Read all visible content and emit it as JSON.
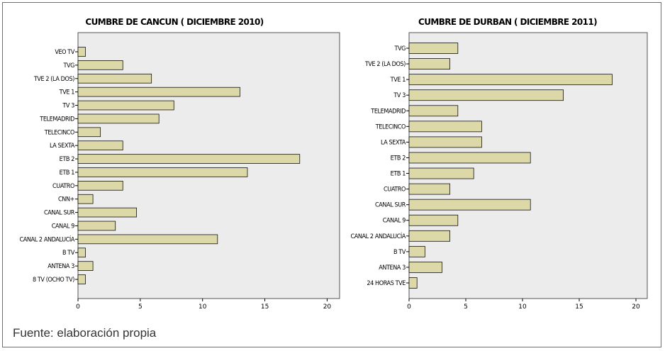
{
  "chart_data": [
    {
      "type": "bar",
      "orientation": "horizontal",
      "title": "CUMBRE DE CANCUN ( DICIEMBRE 2010)",
      "categories": [
        "VEO TV",
        "TVG",
        "TVE 2 (LA DOS)",
        "TVE 1",
        "TV 3",
        "TELEMADRID",
        "TELECINCO",
        "LA SEXTA",
        "ETB 2",
        "ETB 1",
        "CUATRO",
        "CNN+",
        "CANAL SUR",
        "CANAL 9",
        "CANAL 2 ANDALUCÍA",
        "B TV",
        "ANTENA 3",
        "8 TV (OCHO TV)"
      ],
      "values": [
        0.6,
        3.6,
        5.9,
        13.0,
        7.7,
        6.5,
        1.8,
        3.6,
        17.8,
        13.6,
        3.6,
        1.2,
        4.7,
        3.0,
        11.2,
        0.6,
        1.2,
        0.6
      ],
      "xlim": [
        0,
        21
      ],
      "xticks": [
        0,
        5,
        10,
        15,
        20
      ],
      "grid": false,
      "bar_color": "#ddd8a7",
      "plot_background": "#ececec"
    },
    {
      "type": "bar",
      "orientation": "horizontal",
      "title": "CUMBRE DE DURBAN ( DICIEMBRE 2011)",
      "categories": [
        "TVG",
        "TVE 2 (LA DOS)",
        "TVE 1",
        "TV 3",
        "TELEMADRID",
        "TELECINCO",
        "LA SEXTA",
        "ETB 2",
        "ETB 1",
        "CUATRO",
        "CANAL SUR",
        "CANAL 9",
        "CANAL 2 ANDALUCÍA",
        "B TV",
        "ANTENA 3",
        "24 HORAS TVE"
      ],
      "values": [
        4.3,
        3.6,
        17.9,
        13.6,
        4.3,
        6.4,
        6.4,
        10.7,
        5.7,
        3.6,
        10.7,
        4.3,
        3.6,
        1.4,
        2.9,
        0.7
      ],
      "xlim": [
        0,
        21
      ],
      "xticks": [
        0,
        5,
        10,
        15,
        20
      ],
      "grid": false,
      "bar_color": "#ddd8a7",
      "plot_background": "#ececec"
    }
  ],
  "source": "Fuente: elaboración propia"
}
